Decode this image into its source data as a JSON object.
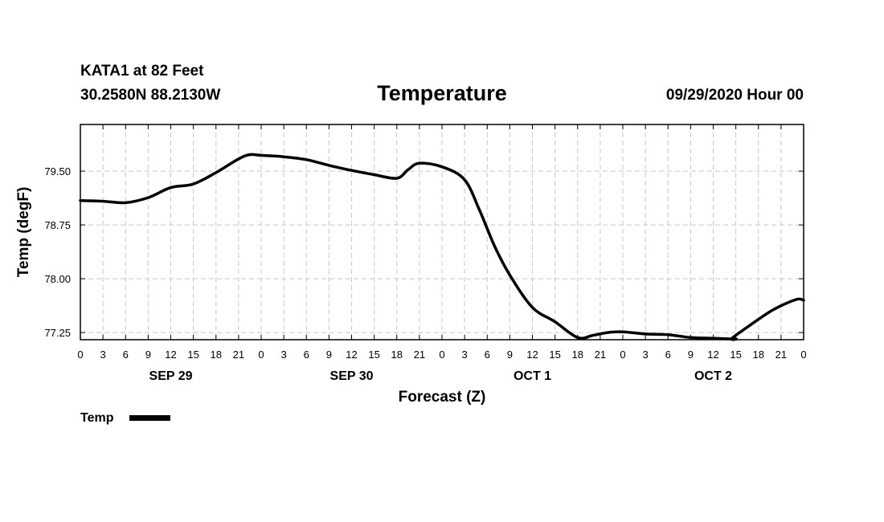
{
  "header": {
    "station": "KATA1 at 82 Feet",
    "location": "30.2580N 88.2130W",
    "title": "Temperature",
    "run": "09/29/2020 Hour 00"
  },
  "chart_data": {
    "type": "line",
    "title": "Temperature",
    "xlabel": "Forecast (Z)",
    "ylabel": "Temp (degF)",
    "ylim": [
      77.15,
      80.15
    ],
    "xlim": [
      0,
      96
    ],
    "y_ticks": [
      "79.50",
      "78.75",
      "78.00",
      "77.25"
    ],
    "y_tick_values": [
      79.5,
      78.75,
      78.0,
      77.25
    ],
    "x_tick_labels": [
      "0",
      "3",
      "6",
      "9",
      "12",
      "15",
      "18",
      "21",
      "0",
      "3",
      "6",
      "9",
      "12",
      "15",
      "18",
      "21",
      "0",
      "3",
      "6",
      "9",
      "12",
      "15",
      "18",
      "21",
      "0",
      "3",
      "6",
      "9",
      "12",
      "15",
      "18",
      "21",
      "0"
    ],
    "day_labels": [
      "SEP 29",
      "SEP 30",
      "OCT 1",
      "OCT 2"
    ],
    "grid": true,
    "legend_position": "bottom-left",
    "series": [
      {
        "name": "Temp",
        "color": "#000000",
        "x": [
          0,
          3,
          6,
          9,
          12,
          15,
          18,
          21,
          22.5,
          24,
          27,
          30,
          33,
          36,
          39,
          42,
          43.5,
          45,
          48,
          51,
          53,
          55,
          57,
          60,
          63,
          66,
          68,
          70,
          72,
          75,
          78,
          81,
          84,
          87,
          86.5,
          89,
          92,
          95,
          96
        ],
        "values": [
          79.09,
          79.08,
          79.06,
          79.13,
          79.27,
          79.32,
          79.48,
          79.67,
          79.73,
          79.72,
          79.7,
          79.66,
          79.58,
          79.51,
          79.45,
          79.4,
          79.52,
          79.61,
          79.56,
          79.38,
          78.95,
          78.45,
          78.05,
          77.6,
          77.4,
          77.18,
          77.21,
          77.25,
          77.26,
          77.23,
          77.22,
          77.18,
          77.17,
          77.16,
          77.17,
          77.36,
          77.57,
          77.71,
          77.7
        ]
      }
    ]
  }
}
